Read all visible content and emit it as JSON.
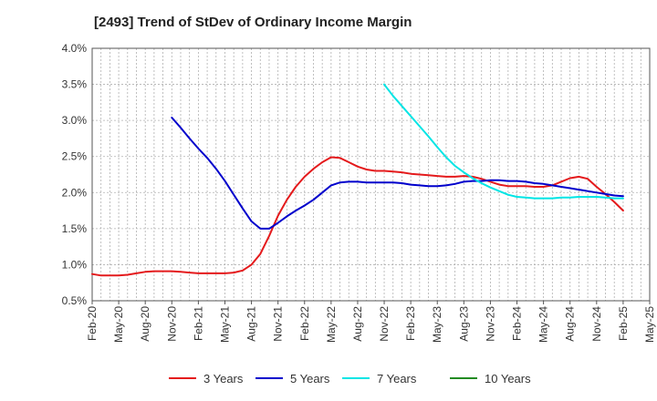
{
  "chart_data": {
    "type": "line",
    "title": "[2493]  Trend of StDev of Ordinary Income Margin",
    "xlabel": "",
    "ylabel": "",
    "x_ticks": [
      "Feb-20",
      "May-20",
      "Aug-20",
      "Nov-20",
      "Feb-21",
      "May-21",
      "Aug-21",
      "Nov-21",
      "Feb-22",
      "May-22",
      "Aug-22",
      "Nov-22",
      "Feb-23",
      "May-23",
      "Aug-23",
      "Nov-23",
      "Feb-24",
      "May-24",
      "Aug-24",
      "Nov-24",
      "Feb-25",
      "May-25"
    ],
    "x_start": "Feb-20",
    "x_end": "May-25",
    "y_ticks": [
      "0.5%",
      "1.0%",
      "1.5%",
      "2.0%",
      "2.5%",
      "3.0%",
      "3.5%",
      "4.0%"
    ],
    "ylim": [
      0.5,
      4.0
    ],
    "grid": true,
    "legend_position": "bottom",
    "series": [
      {
        "name": "3 Years",
        "color": "#e41a1c",
        "points": [
          [
            "Feb-20",
            0.87
          ],
          [
            "Mar-20",
            0.85
          ],
          [
            "Apr-20",
            0.85
          ],
          [
            "May-20",
            0.85
          ],
          [
            "Jun-20",
            0.86
          ],
          [
            "Jul-20",
            0.88
          ],
          [
            "Aug-20",
            0.9
          ],
          [
            "Sep-20",
            0.91
          ],
          [
            "Oct-20",
            0.91
          ],
          [
            "Nov-20",
            0.91
          ],
          [
            "Dec-20",
            0.9
          ],
          [
            "Jan-21",
            0.89
          ],
          [
            "Feb-21",
            0.88
          ],
          [
            "Mar-21",
            0.88
          ],
          [
            "Apr-21",
            0.88
          ],
          [
            "May-21",
            0.88
          ],
          [
            "Jun-21",
            0.89
          ],
          [
            "Jul-21",
            0.92
          ],
          [
            "Aug-21",
            1.0
          ],
          [
            "Sep-21",
            1.15
          ],
          [
            "Oct-21",
            1.4
          ],
          [
            "Nov-21",
            1.68
          ],
          [
            "Dec-21",
            1.9
          ],
          [
            "Jan-22",
            2.08
          ],
          [
            "Feb-22",
            2.22
          ],
          [
            "Mar-22",
            2.33
          ],
          [
            "Apr-22",
            2.42
          ],
          [
            "May-22",
            2.49
          ],
          [
            "Jun-22",
            2.48
          ],
          [
            "Jul-22",
            2.42
          ],
          [
            "Aug-22",
            2.36
          ],
          [
            "Sep-22",
            2.32
          ],
          [
            "Oct-22",
            2.3
          ],
          [
            "Nov-22",
            2.3
          ],
          [
            "Dec-22",
            2.29
          ],
          [
            "Jan-23",
            2.28
          ],
          [
            "Feb-23",
            2.26
          ],
          [
            "Mar-23",
            2.25
          ],
          [
            "Apr-23",
            2.24
          ],
          [
            "May-23",
            2.23
          ],
          [
            "Jun-23",
            2.22
          ],
          [
            "Jul-23",
            2.22
          ],
          [
            "Aug-23",
            2.23
          ],
          [
            "Sep-23",
            2.22
          ],
          [
            "Oct-23",
            2.19
          ],
          [
            "Nov-23",
            2.15
          ],
          [
            "Dec-23",
            2.11
          ],
          [
            "Jan-24",
            2.09
          ],
          [
            "Feb-24",
            2.09
          ],
          [
            "Mar-24",
            2.09
          ],
          [
            "Apr-24",
            2.08
          ],
          [
            "May-24",
            2.08
          ],
          [
            "Jun-24",
            2.1
          ],
          [
            "Jul-24",
            2.15
          ],
          [
            "Aug-24",
            2.2
          ],
          [
            "Sep-24",
            2.22
          ],
          [
            "Oct-24",
            2.19
          ],
          [
            "Nov-24",
            2.08
          ],
          [
            "Dec-24",
            1.98
          ],
          [
            "Jan-25",
            1.87
          ],
          [
            "Feb-25",
            1.75
          ]
        ]
      },
      {
        "name": "5 Years",
        "color": "#0000cc",
        "points": [
          [
            "Nov-20",
            3.04
          ],
          [
            "Dec-20",
            2.9
          ],
          [
            "Jan-21",
            2.75
          ],
          [
            "Feb-21",
            2.61
          ],
          [
            "Mar-21",
            2.48
          ],
          [
            "Apr-21",
            2.33
          ],
          [
            "May-21",
            2.16
          ],
          [
            "Jun-21",
            1.97
          ],
          [
            "Jul-21",
            1.78
          ],
          [
            "Aug-21",
            1.6
          ],
          [
            "Sep-21",
            1.5
          ],
          [
            "Oct-21",
            1.5
          ],
          [
            "Nov-21",
            1.58
          ],
          [
            "Dec-21",
            1.67
          ],
          [
            "Jan-22",
            1.75
          ],
          [
            "Feb-22",
            1.82
          ],
          [
            "Mar-22",
            1.9
          ],
          [
            "Apr-22",
            2.0
          ],
          [
            "May-22",
            2.1
          ],
          [
            "Jun-22",
            2.14
          ],
          [
            "Jul-22",
            2.15
          ],
          [
            "Aug-22",
            2.15
          ],
          [
            "Sep-22",
            2.14
          ],
          [
            "Oct-22",
            2.14
          ],
          [
            "Nov-22",
            2.14
          ],
          [
            "Dec-22",
            2.14
          ],
          [
            "Jan-23",
            2.13
          ],
          [
            "Feb-23",
            2.11
          ],
          [
            "Mar-23",
            2.1
          ],
          [
            "Apr-23",
            2.09
          ],
          [
            "May-23",
            2.09
          ],
          [
            "Jun-23",
            2.1
          ],
          [
            "Jul-23",
            2.12
          ],
          [
            "Aug-23",
            2.15
          ],
          [
            "Sep-23",
            2.16
          ],
          [
            "Oct-23",
            2.16
          ],
          [
            "Nov-23",
            2.17
          ],
          [
            "Dec-23",
            2.17
          ],
          [
            "Jan-24",
            2.16
          ],
          [
            "Feb-24",
            2.16
          ],
          [
            "Mar-24",
            2.15
          ],
          [
            "Apr-24",
            2.13
          ],
          [
            "May-24",
            2.12
          ],
          [
            "Jun-24",
            2.1
          ],
          [
            "Jul-24",
            2.08
          ],
          [
            "Aug-24",
            2.06
          ],
          [
            "Sep-24",
            2.04
          ],
          [
            "Oct-24",
            2.02
          ],
          [
            "Nov-24",
            2.0
          ],
          [
            "Dec-24",
            1.98
          ],
          [
            "Jan-25",
            1.96
          ],
          [
            "Feb-25",
            1.95
          ]
        ]
      },
      {
        "name": "7 Years",
        "color": "#00e5e5",
        "points": [
          [
            "Nov-22",
            3.5
          ],
          [
            "Dec-22",
            3.34
          ],
          [
            "Jan-23",
            3.2
          ],
          [
            "Feb-23",
            3.06
          ],
          [
            "Mar-23",
            2.92
          ],
          [
            "Apr-23",
            2.78
          ],
          [
            "May-23",
            2.63
          ],
          [
            "Jun-23",
            2.49
          ],
          [
            "Jul-23",
            2.37
          ],
          [
            "Aug-23",
            2.28
          ],
          [
            "Sep-23",
            2.2
          ],
          [
            "Oct-23",
            2.13
          ],
          [
            "Nov-23",
            2.07
          ],
          [
            "Dec-23",
            2.02
          ],
          [
            "Jan-24",
            1.97
          ],
          [
            "Feb-24",
            1.94
          ],
          [
            "Mar-24",
            1.93
          ],
          [
            "Apr-24",
            1.92
          ],
          [
            "May-24",
            1.92
          ],
          [
            "Jun-24",
            1.92
          ],
          [
            "Jul-24",
            1.93
          ],
          [
            "Aug-24",
            1.93
          ],
          [
            "Sep-24",
            1.94
          ],
          [
            "Oct-24",
            1.94
          ],
          [
            "Nov-24",
            1.94
          ],
          [
            "Dec-24",
            1.93
          ],
          [
            "Jan-25",
            1.92
          ],
          [
            "Feb-25",
            1.92
          ]
        ]
      },
      {
        "name": "10 Years",
        "color": "#228b22",
        "points": []
      }
    ]
  }
}
